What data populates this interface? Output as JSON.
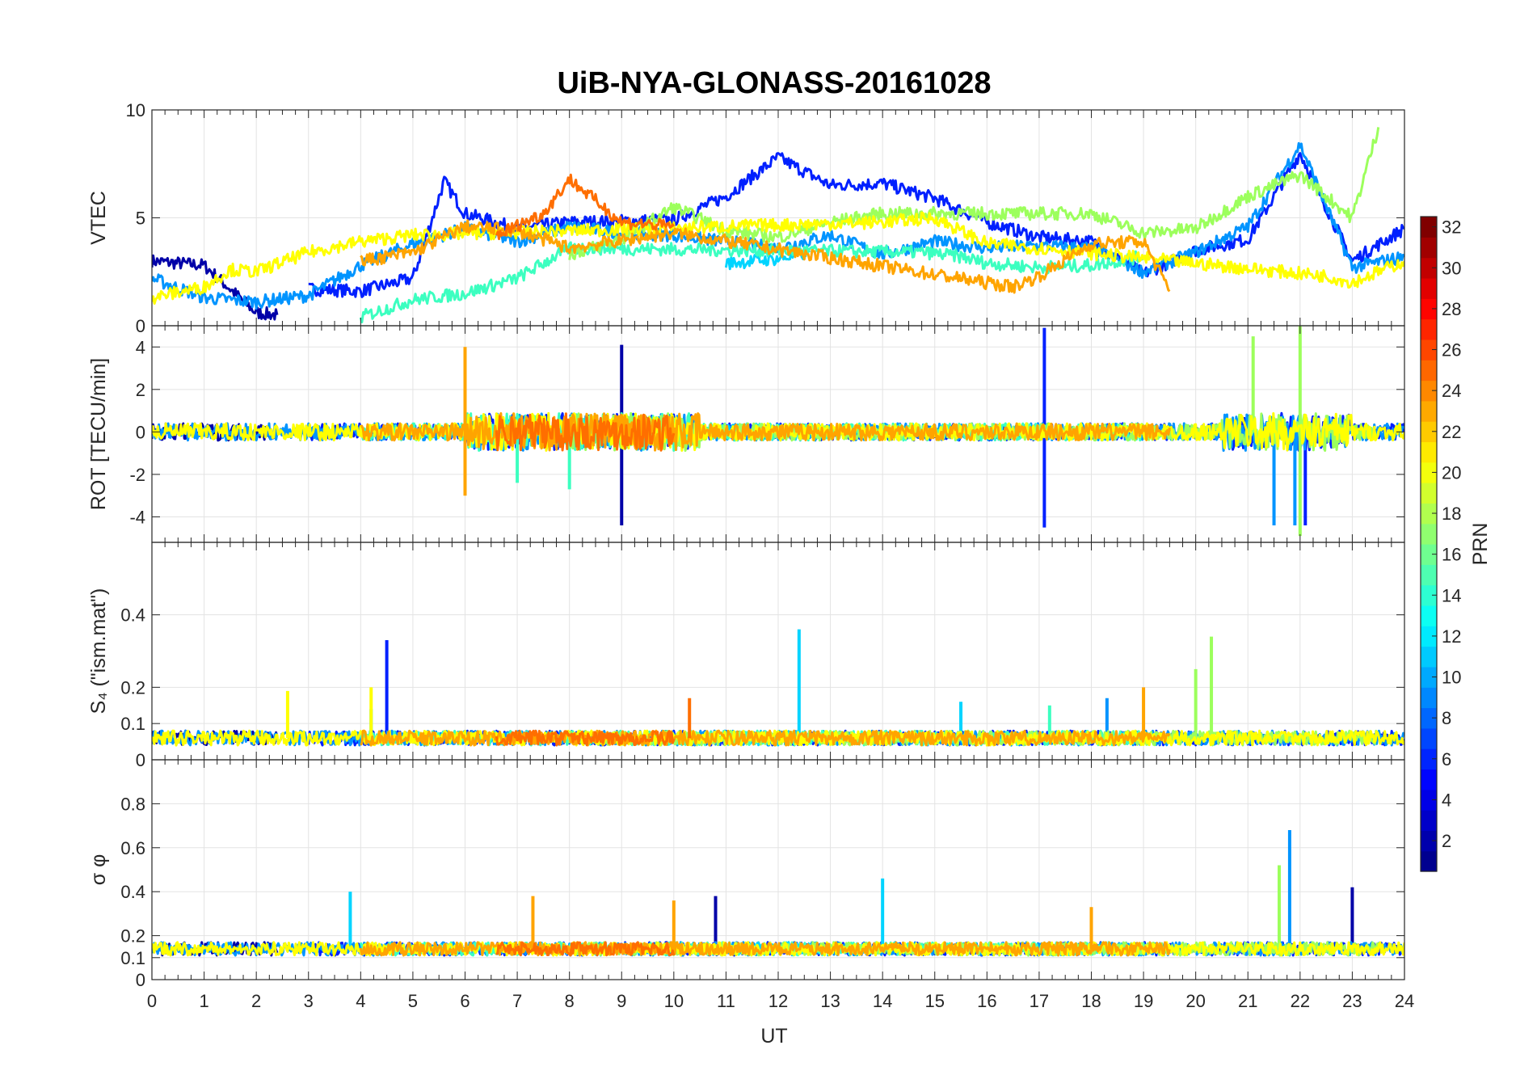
{
  "chart_data": {
    "type": "line",
    "title": "UiB-NYA-GLONASS-20161028",
    "xlabel": "UT",
    "xlim": [
      0,
      24
    ],
    "x_ticks": [
      "0",
      "1",
      "2",
      "3",
      "4",
      "5",
      "6",
      "7",
      "8",
      "9",
      "10",
      "11",
      "12",
      "13",
      "14",
      "15",
      "16",
      "17",
      "18",
      "19",
      "20",
      "21",
      "22",
      "23",
      "24"
    ],
    "panels": [
      {
        "id": "vtec",
        "ylabel": "VTEC",
        "ylim": [
          0,
          10
        ],
        "y_ticks": [
          "0",
          "5",
          "10"
        ],
        "y_tick_values": [
          0,
          5,
          10
        ],
        "baseline": 3.5,
        "noise": 0.6
      },
      {
        "id": "rot",
        "ylabel": "ROT [TECU/min]",
        "ylim": [
          -5.2,
          5
        ],
        "y_ticks": [
          "-4",
          "-2",
          "0",
          "2",
          "4"
        ],
        "y_tick_values": [
          -4,
          -2,
          0,
          2,
          4
        ],
        "baseline": 0,
        "noise": 0.4
      },
      {
        "id": "s4",
        "ylabel": "S₄ (\"ism.mat\")",
        "ylim": [
          0,
          0.6
        ],
        "y_ticks": [
          "0",
          "0.1",
          "0.2",
          "0.4"
        ],
        "y_tick_values": [
          0,
          0.1,
          0.2,
          0.4
        ],
        "baseline": 0.06,
        "noise": 0.02
      },
      {
        "id": "sigma",
        "ylabel": "σ φ",
        "ylim": [
          0,
          1
        ],
        "y_ticks": [
          "0",
          "0.1",
          "0.2",
          "0.4",
          "0.6",
          "0.8"
        ],
        "y_tick_values": [
          0,
          0.1,
          0.2,
          0.4,
          0.6,
          0.8
        ],
        "baseline": 0.14,
        "noise": 0.03
      }
    ],
    "colorbar": {
      "label": "PRN",
      "range": [
        1,
        32
      ],
      "ticks": [
        "2",
        "4",
        "6",
        "8",
        "10",
        "12",
        "14",
        "16",
        "18",
        "20",
        "22",
        "24",
        "26",
        "28",
        "30",
        "32"
      ],
      "colormap": "jet"
    },
    "series": [
      {
        "name": "PRN 1",
        "prn": 1,
        "color": "#0000a8",
        "vtec": [
          [
            0,
            3.0
          ],
          [
            1,
            2.8
          ],
          [
            2,
            0.6
          ],
          [
            2.4,
            0.5
          ]
        ],
        "spikes": {
          "rot": [
            [
              9,
              -4.4
            ],
            [
              9,
              4.1
            ]
          ],
          "s4": [],
          "sigma": [
            [
              10.8,
              0.38
            ],
            [
              23,
              0.42
            ]
          ]
        }
      },
      {
        "name": "PRN 4",
        "prn": 4,
        "color": "#0020ff",
        "vtec": [
          [
            3,
            1.7
          ],
          [
            4,
            1.6
          ],
          [
            5,
            2.2
          ],
          [
            5.6,
            6.7
          ],
          [
            6,
            5.2
          ],
          [
            7,
            4.5
          ],
          [
            8,
            4.8
          ],
          [
            10,
            4.9
          ],
          [
            11,
            6.0
          ],
          [
            12,
            7.8
          ],
          [
            13,
            6.5
          ],
          [
            14,
            6.6
          ],
          [
            15,
            5.9
          ],
          [
            16,
            4.8
          ],
          [
            17,
            4.1
          ],
          [
            18,
            3.9
          ],
          [
            19,
            2.4
          ],
          [
            20,
            3.5
          ],
          [
            21,
            4.0
          ],
          [
            22,
            8.0
          ],
          [
            23,
            3.0
          ],
          [
            24,
            4.5
          ]
        ],
        "spikes": {
          "rot": [
            [
              17.1,
              -4.5
            ],
            [
              17.1,
              4.9
            ],
            [
              22.1,
              -4.4
            ]
          ],
          "s4": [
            [
              4.5,
              0.33
            ]
          ],
          "sigma": []
        }
      },
      {
        "name": "PRN 9",
        "prn": 9,
        "color": "#0094ff",
        "vtec": [
          [
            0,
            2.2
          ],
          [
            1,
            1.3
          ],
          [
            2,
            1.1
          ],
          [
            3,
            1.4
          ],
          [
            4,
            2.8
          ],
          [
            5,
            3.8
          ],
          [
            6,
            4.5
          ],
          [
            7,
            3.9
          ],
          [
            8,
            4.6
          ],
          [
            9,
            4.3
          ],
          [
            10,
            4.2
          ],
          [
            11,
            3.9
          ],
          [
            12,
            3.6
          ],
          [
            13,
            4.2
          ],
          [
            14,
            3.3
          ],
          [
            15,
            3.9
          ],
          [
            16,
            3.6
          ],
          [
            17,
            3.7
          ],
          [
            18,
            3.6
          ],
          [
            19,
            2.5
          ],
          [
            20,
            3.4
          ],
          [
            21,
            4.6
          ],
          [
            22,
            8.4
          ],
          [
            23,
            2.7
          ],
          [
            24,
            3.2
          ]
        ],
        "spikes": {
          "rot": [
            [
              21.5,
              -4.4
            ],
            [
              21.9,
              -4.4
            ]
          ],
          "s4": [
            [
              18.3,
              0.17
            ]
          ],
          "sigma": [
            [
              21.8,
              0.68
            ]
          ]
        }
      },
      {
        "name": "PRN 12",
        "prn": 12,
        "color": "#00d4ff",
        "vtec": [
          [
            11,
            2.9
          ],
          [
            12,
            3.1
          ],
          [
            12.6,
            3.4
          ]
        ],
        "spikes": {
          "rot": [],
          "s4": [
            [
              12.4,
              0.36
            ],
            [
              4.2,
              0.14
            ],
            [
              15.5,
              0.16
            ]
          ],
          "sigma": [
            [
              14,
              0.46
            ],
            [
              3.8,
              0.4
            ]
          ]
        }
      },
      {
        "name": "PRN 14",
        "prn": 14,
        "color": "#3cffc0",
        "vtec": [
          [
            4,
            0.4
          ],
          [
            5,
            1.2
          ],
          [
            6,
            1.5
          ],
          [
            7,
            2.2
          ],
          [
            8,
            3.6
          ],
          [
            14.8,
            3.4
          ],
          [
            15.5,
            3.2
          ],
          [
            16,
            2.9
          ],
          [
            17,
            2.7
          ],
          [
            18,
            2.8
          ],
          [
            19,
            3.2
          ]
        ],
        "spikes": {
          "rot": [
            [
              7,
              -2.4
            ],
            [
              8,
              -2.7
            ]
          ],
          "s4": [
            [
              17.2,
              0.15
            ]
          ],
          "sigma": []
        }
      },
      {
        "name": "PRN 17",
        "prn": 17,
        "color": "#9cff5c",
        "vtec": [
          [
            8,
            3.3
          ],
          [
            9,
            4.0
          ],
          [
            10,
            5.5
          ],
          [
            11,
            4.4
          ],
          [
            12,
            4.1
          ],
          [
            13,
            4.8
          ],
          [
            14,
            5.2
          ],
          [
            18,
            5.2
          ],
          [
            19,
            4.3
          ],
          [
            20,
            4.5
          ],
          [
            21,
            6.0
          ],
          [
            22,
            7.0
          ],
          [
            23,
            5.0
          ],
          [
            23.5,
            9.2
          ]
        ],
        "spikes": {
          "rot": [
            [
              21.1,
              4.5
            ],
            [
              22,
              -4.9
            ],
            [
              22,
              5.0
            ]
          ],
          "s4": [
            [
              20.3,
              0.34
            ],
            [
              20,
              0.25
            ]
          ],
          "sigma": [
            [
              21.6,
              0.52
            ]
          ]
        }
      },
      {
        "name": "PRN 20",
        "prn": 20,
        "color": "#ffff00",
        "vtec": [
          [
            0,
            1.3
          ],
          [
            1,
            1.8
          ],
          [
            1.5,
            2.6
          ],
          [
            2,
            2.5
          ],
          [
            3,
            3.4
          ],
          [
            4,
            3.9
          ],
          [
            5,
            4.2
          ],
          [
            14,
            4.8
          ],
          [
            15,
            5.0
          ],
          [
            16,
            3.8
          ],
          [
            17,
            3.6
          ],
          [
            22.5,
            2.3
          ],
          [
            23,
            2.0
          ],
          [
            24,
            3.0
          ]
        ],
        "spikes": {
          "rot": [
            [
              6,
              -2.9
            ]
          ],
          "s4": [
            [
              4.2,
              0.2
            ],
            [
              2.6,
              0.19
            ]
          ],
          "sigma": []
        }
      },
      {
        "name": "PRN 23",
        "prn": 23,
        "color": "#ffa400",
        "vtec": [
          [
            4,
            3.0
          ],
          [
            5,
            3.4
          ],
          [
            6,
            4.6
          ],
          [
            7,
            4.4
          ],
          [
            8,
            3.6
          ],
          [
            10,
            4.3
          ],
          [
            16.5,
            1.8
          ],
          [
            17,
            2.3
          ],
          [
            18,
            3.8
          ],
          [
            19,
            3.9
          ],
          [
            19.5,
            1.6
          ]
        ],
        "spikes": {
          "rot": [
            [
              6,
              4.0
            ],
            [
              6,
              -3.0
            ]
          ],
          "s4": [
            [
              19,
              0.2
            ]
          ],
          "sigma": [
            [
              7.3,
              0.38
            ],
            [
              10,
              0.36
            ],
            [
              18,
              0.33
            ]
          ]
        }
      },
      {
        "name": "PRN 24",
        "prn": 24,
        "color": "#ff6e00",
        "vtec": [
          [
            6.6,
            4.2
          ],
          [
            7.5,
            5.2
          ],
          [
            8,
            6.8
          ],
          [
            9,
            4.8
          ],
          [
            10,
            4.6
          ]
        ],
        "spikes": {
          "rot": [],
          "s4": [
            [
              10.3,
              0.17
            ]
          ],
          "sigma": []
        }
      }
    ]
  }
}
